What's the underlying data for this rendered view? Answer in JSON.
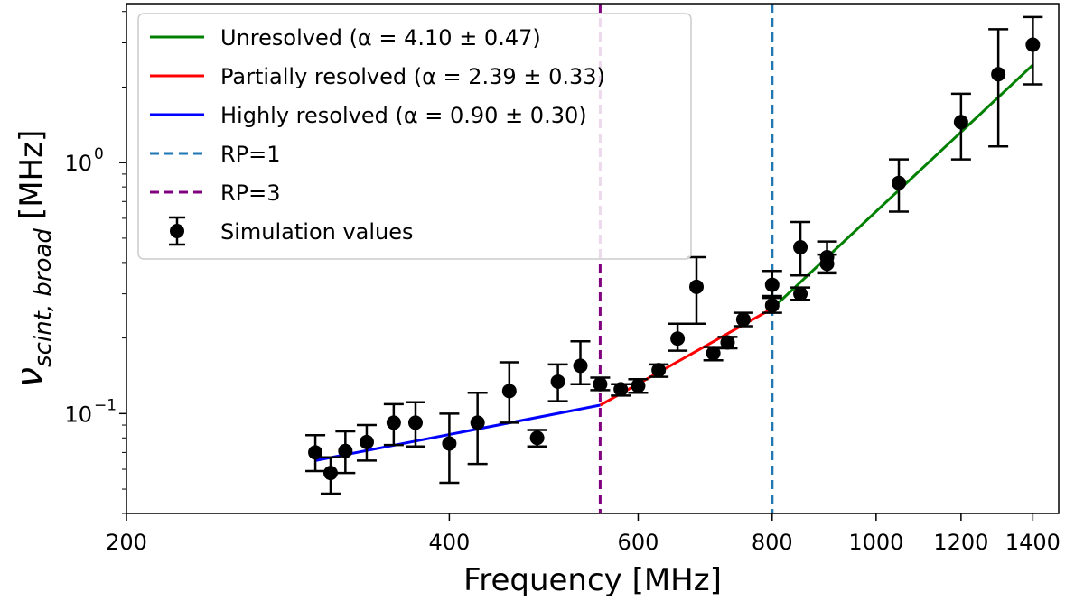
{
  "chart_data": {
    "type": "scatter",
    "xscale": "log",
    "yscale": "log",
    "xlim": [
      200,
      1480
    ],
    "ylim": [
      0.04,
      4.3
    ],
    "xlabel": "Frequency [MHz]",
    "ylabel": {
      "base": "ν",
      "sub": "scint, broad",
      "unit": "[MHz]"
    },
    "x_ticks": [
      {
        "value": 200,
        "label": "200"
      },
      {
        "value": 400,
        "label": "400"
      },
      {
        "value": 600,
        "label": "600"
      },
      {
        "value": 800,
        "label": "800"
      },
      {
        "value": 1000,
        "label": "1000"
      },
      {
        "value": 1200,
        "label": "1200"
      },
      {
        "value": 1400,
        "label": "1400"
      }
    ],
    "y_ticks": [
      {
        "value": 0.1,
        "base": "10",
        "exp": "−1"
      },
      {
        "value": 1.0,
        "base": "10",
        "exp": "0"
      }
    ],
    "series": [
      {
        "name": "Simulation values",
        "kind": "errorbar",
        "color": "#000000",
        "x": [
          300,
          310,
          320,
          335,
          355,
          372,
          400,
          425,
          455,
          483,
          505,
          530,
          553,
          578,
          600,
          627,
          653,
          680,
          705,
          727,
          752,
          800,
          800,
          850,
          850,
          900,
          900,
          1050,
          1200,
          1300,
          1400
        ],
        "y": [
          0.07,
          0.058,
          0.071,
          0.077,
          0.092,
          0.092,
          0.076,
          0.092,
          0.123,
          0.08,
          0.134,
          0.155,
          0.131,
          0.125,
          0.129,
          0.149,
          0.199,
          0.32,
          0.174,
          0.192,
          0.237,
          0.326,
          0.27,
          0.46,
          0.3,
          0.42,
          0.395,
          0.83,
          1.45,
          2.25,
          2.95
        ],
        "ylow": [
          0.059,
          0.048,
          0.058,
          0.065,
          0.075,
          0.074,
          0.053,
          0.063,
          0.092,
          0.074,
          0.112,
          0.131,
          0.124,
          0.118,
          0.121,
          0.14,
          0.178,
          0.228,
          0.163,
          0.182,
          0.223,
          0.294,
          0.252,
          0.355,
          0.284,
          0.365,
          0.362,
          0.638,
          1.03,
          1.16,
          2.05
        ],
        "yhigh": [
          0.082,
          0.067,
          0.085,
          0.09,
          0.109,
          0.111,
          0.1,
          0.121,
          0.16,
          0.086,
          0.157,
          0.194,
          0.139,
          0.131,
          0.137,
          0.157,
          0.228,
          0.42,
          0.184,
          0.202,
          0.252,
          0.37,
          0.289,
          0.58,
          0.318,
          0.485,
          0.43,
          1.03,
          1.88,
          3.4,
          3.8
        ]
      }
    ],
    "fits": [
      {
        "name": "Unresolved (α = 4.10 ± 0.47)",
        "color": "#008000",
        "x": [
          800,
          1400
        ],
        "y": [
          0.262,
          2.45
        ]
      },
      {
        "name": "Partially resolved (α = 2.39 ± 0.33)",
        "color": "#ff0000",
        "x": [
          553,
          800
        ],
        "y": [
          0.108,
          0.262
        ]
      },
      {
        "name": "Highly resolved (α = 0.90 ± 0.30)",
        "color": "#0000ff",
        "x": [
          300,
          553
        ],
        "y": [
          0.065,
          0.108
        ]
      }
    ],
    "vlines": [
      {
        "name": "RP=1",
        "x": 800,
        "color": "#1f77b4"
      },
      {
        "name": "RP=3",
        "x": 553,
        "color": "#800080"
      }
    ],
    "legend": {
      "position": "top-left",
      "entries": [
        {
          "label": "Unresolved (α = 4.10 ± 0.47)",
          "style": "solid",
          "color": "#008000"
        },
        {
          "label": "Partially resolved (α = 2.39 ± 0.33)",
          "style": "solid",
          "color": "#ff0000"
        },
        {
          "label": "Highly resolved (α = 0.90 ± 0.30)",
          "style": "solid",
          "color": "#0000ff"
        },
        {
          "label": "RP=1",
          "style": "dashed",
          "color": "#1f77b4"
        },
        {
          "label": "RP=3",
          "style": "dashed",
          "color": "#800080"
        },
        {
          "label": "Simulation values",
          "style": "errorbar",
          "color": "#000000"
        }
      ]
    }
  }
}
